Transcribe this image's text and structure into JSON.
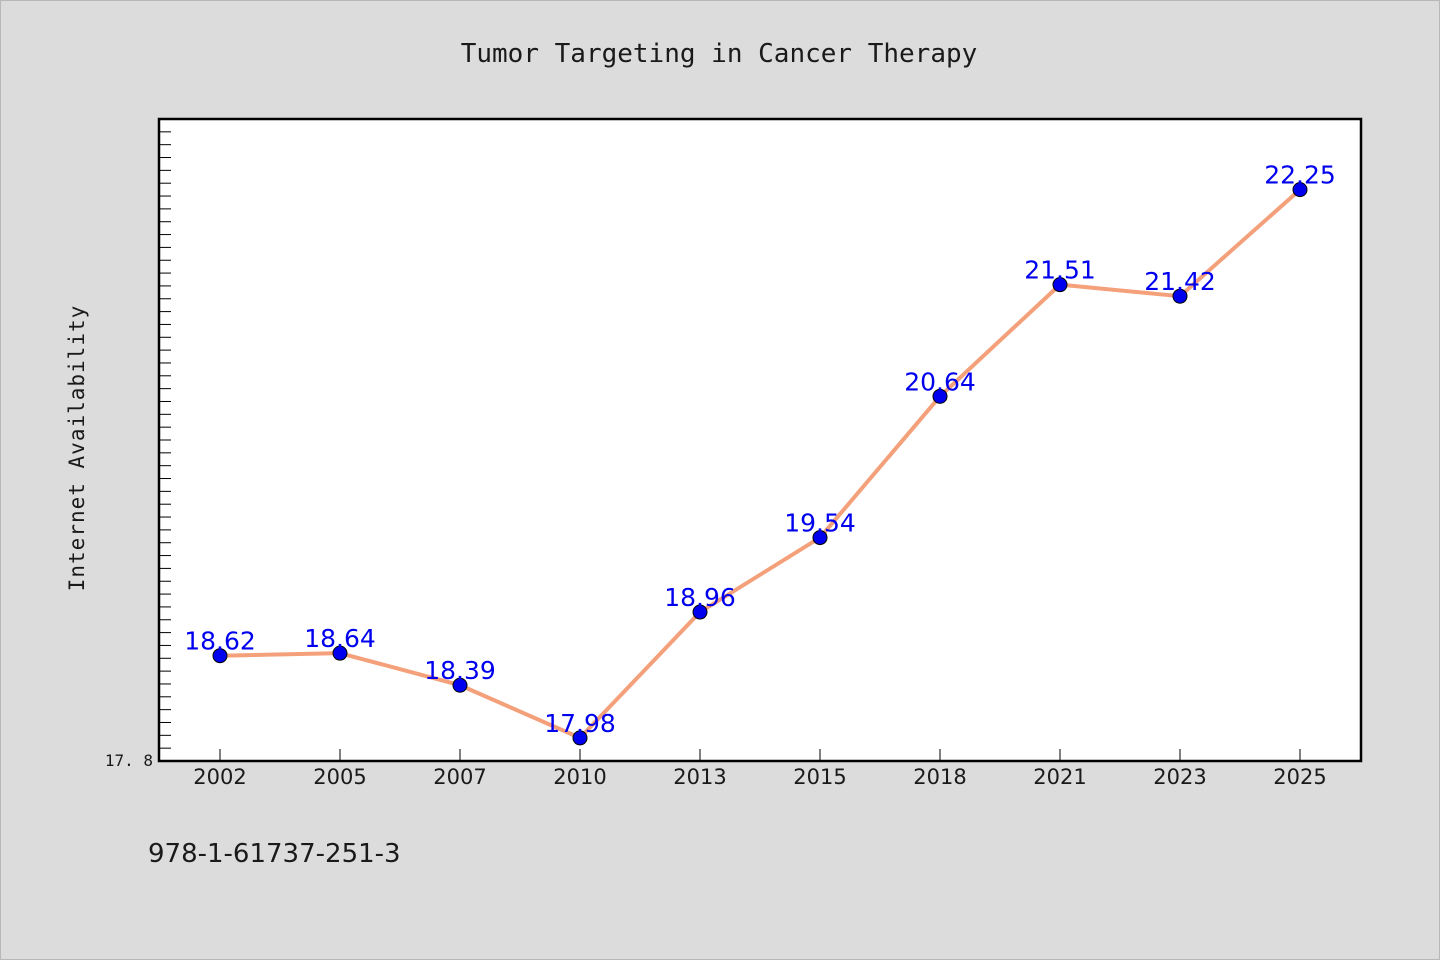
{
  "chart_data": {
    "type": "line",
    "title": "Tumor Targeting in Cancer Therapy",
    "xlabel": "",
    "ylabel": "Internet Availability",
    "categories": [
      "2002",
      "2005",
      "2007",
      "2010",
      "2013",
      "2015",
      "2018",
      "2021",
      "2023",
      "2025"
    ],
    "series": [
      {
        "values": [
          18.62,
          18.64,
          18.39,
          17.98,
          18.96,
          19.54,
          20.64,
          21.51,
          21.42,
          22.25
        ]
      }
    ],
    "data_labels": [
      "18.62",
      "18.64",
      "18.39",
      "17.98",
      "18.96",
      "19.54",
      "20.64",
      "21.51",
      "21.42",
      "22.25"
    ],
    "y_tick_labels": [
      "17.8"
    ],
    "ylim": [
      17.8,
      22.8
    ],
    "grid": false,
    "legend": "none",
    "colors": {
      "line": "#f4a07a",
      "marker": "#0000ee",
      "data_label": "#0000ee",
      "background": "#dcdcdc",
      "plot_background": "#ffffff"
    }
  },
  "footer_text": "978-1-61737-251-3"
}
